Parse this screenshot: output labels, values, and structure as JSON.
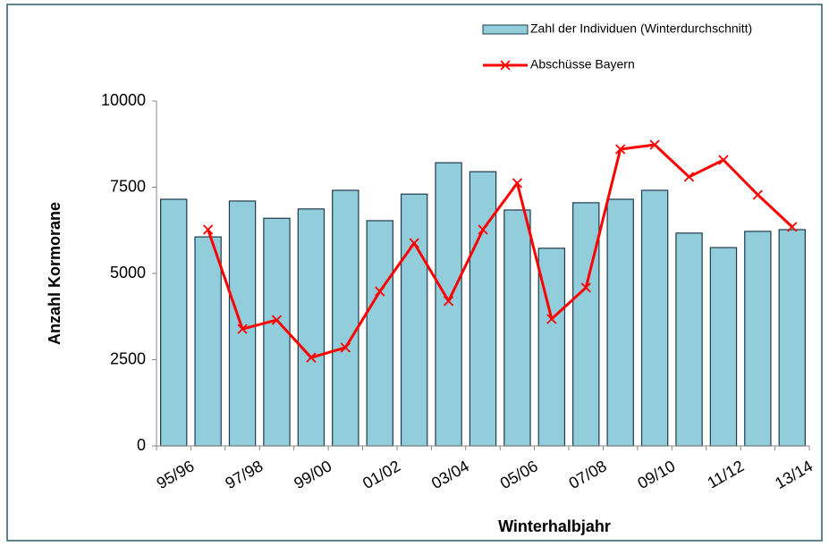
{
  "chart_data": {
    "type": "bar_line",
    "x_label": "Winterhalbjahr",
    "y_label": "Anzahl Kormorane",
    "categories": [
      "95/96",
      null,
      "97/98",
      null,
      "99/00",
      null,
      "01/02",
      null,
      "03/04",
      null,
      "05/06",
      null,
      "07/08",
      null,
      "09/10",
      null,
      "11/12",
      null,
      "13/14"
    ],
    "series": [
      {
        "name": "Zahl der Individuen (Winterdurchschnitt)",
        "type": "bar",
        "color": "#92cddc",
        "values": [
          7150,
          6060,
          7100,
          6600,
          6870,
          7410,
          6530,
          7300,
          8210,
          7950,
          6840,
          5730,
          7050,
          7150,
          7410,
          6170,
          5750,
          6220,
          6270
        ]
      },
      {
        "name": "Abschüsse Bayern",
        "type": "line",
        "color": "#ff0000",
        "values": [
          null,
          6270,
          3390,
          3650,
          2560,
          2850,
          4480,
          5880,
          4200,
          6270,
          7620,
          3680,
          4590,
          8600,
          8730,
          7800,
          8290,
          7280,
          6350
        ]
      }
    ],
    "ylim": [
      0,
      10000
    ],
    "yticks": [
      0,
      2500,
      5000,
      7500,
      10000
    ],
    "grid": false,
    "legend": "top-right"
  }
}
